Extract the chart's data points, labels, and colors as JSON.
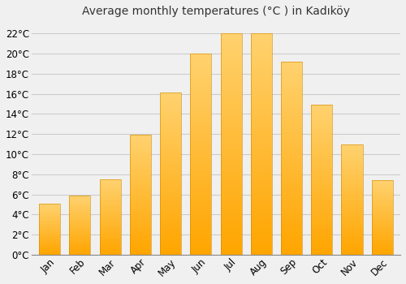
{
  "title": "Average monthly temperatures (°C ) in Kadıköy",
  "months": [
    "Jan",
    "Feb",
    "Mar",
    "Apr",
    "May",
    "Jun",
    "Jul",
    "Aug",
    "Sep",
    "Oct",
    "Nov",
    "Dec"
  ],
  "temperatures": [
    5.1,
    5.9,
    7.5,
    11.9,
    16.1,
    20.0,
    22.0,
    22.0,
    19.2,
    14.9,
    11.0,
    7.4
  ],
  "bar_color_bottom": "#FFA500",
  "bar_color_top": "#FFD070",
  "background_color": "#f0f0f0",
  "plot_bg_color": "#f0f0f0",
  "grid_color": "#cccccc",
  "ylim": [
    0,
    23
  ],
  "yticks": [
    0,
    2,
    4,
    6,
    8,
    10,
    12,
    14,
    16,
    18,
    20,
    22
  ],
  "ytick_labels": [
    "0°C",
    "2°C",
    "4°C",
    "6°C",
    "8°C",
    "10°C",
    "12°C",
    "14°C",
    "16°C",
    "18°C",
    "20°C",
    "22°C"
  ],
  "title_fontsize": 10,
  "tick_fontsize": 8.5,
  "bar_width": 0.7
}
